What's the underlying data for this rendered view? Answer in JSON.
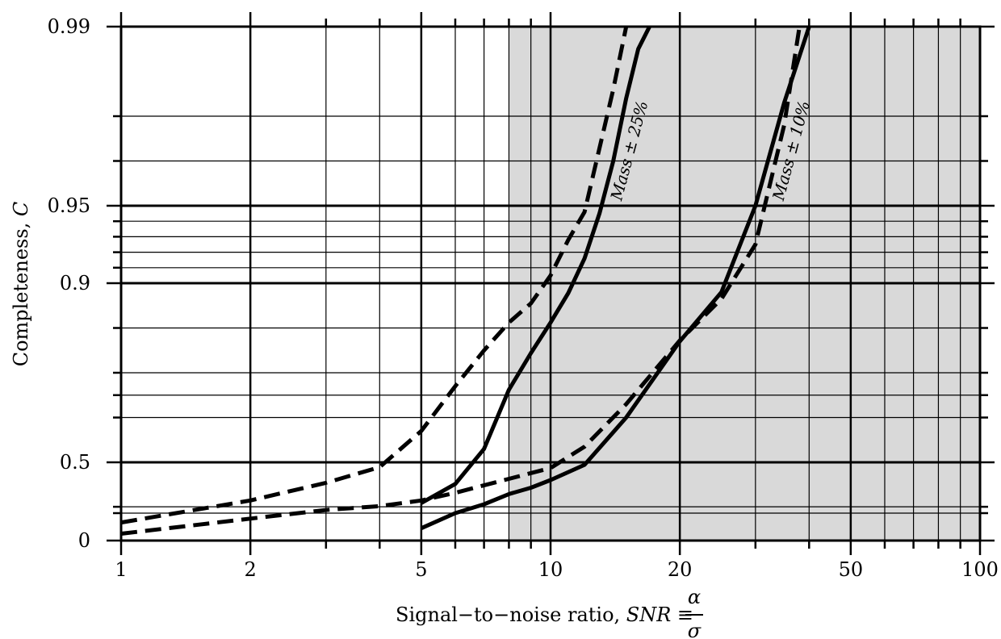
{
  "chart_data": {
    "type": "line",
    "xscale": "log",
    "yscale": "completeness (nonlinear)",
    "xlim": [
      1,
      100
    ],
    "ylim": [
      0,
      0.99
    ],
    "shaded_x_range": [
      8,
      100
    ],
    "grid": true,
    "xlabel": {
      "prefix": "Signal−to−noise ratio, ",
      "symbol": "SNR",
      "equiv": " ≡ ",
      "numerator": "α",
      "denominator": "σ"
    },
    "ylabel": {
      "prefix": "Completeness, ",
      "symbol": "C"
    },
    "x_ticks": [
      {
        "value": 1,
        "label": "1"
      },
      {
        "value": 2,
        "label": "2"
      },
      {
        "value": 5,
        "label": "5"
      },
      {
        "value": 10,
        "label": "10"
      },
      {
        "value": 20,
        "label": "20"
      },
      {
        "value": 50,
        "label": "50"
      },
      {
        "value": 100,
        "label": "100"
      }
    ],
    "y_ticks": [
      {
        "value": 0,
        "label": "0"
      },
      {
        "value": 0.5,
        "label": "0.5"
      },
      {
        "value": 0.9,
        "label": "0.9"
      },
      {
        "value": 0.95,
        "label": "0.95"
      },
      {
        "value": 0.99,
        "label": "0.99"
      }
    ],
    "annotations": [
      {
        "text": "Mass ± 25%",
        "x": 15.7,
        "y": 0.962,
        "rotation": -75
      },
      {
        "text": "Mass ± 10%",
        "x": 37.4,
        "y": 0.962,
        "rotation": -75
      }
    ],
    "series": [
      {
        "style": "dashed",
        "x": [
          1,
          2,
          3,
          4,
          5,
          6,
          7,
          8,
          9,
          10,
          11,
          12,
          14,
          15
        ],
        "y": [
          0.066,
          0.2,
          0.339,
          0.462,
          0.57,
          0.67,
          0.75,
          0.812,
          0.855,
          0.905,
          0.928,
          0.946,
          0.976,
          0.99
        ]
      },
      {
        "style": "solid",
        "x": [
          5,
          6,
          7,
          8,
          9,
          10,
          11,
          12,
          13,
          14,
          15,
          16,
          17
        ],
        "y": [
          0.18,
          0.33,
          0.53,
          0.662,
          0.744,
          0.812,
          0.878,
          0.916,
          0.945,
          0.96,
          0.974,
          0.985,
          0.99
        ]
      },
      {
        "style": "dashed",
        "x": [
          1,
          2,
          3,
          4,
          5,
          6,
          8,
          10,
          12,
          15,
          20,
          25,
          30,
          35,
          38
        ],
        "y": [
          0.025,
          0.08,
          0.125,
          0.155,
          0.2,
          0.26,
          0.37,
          0.455,
          0.535,
          0.63,
          0.772,
          0.865,
          0.925,
          0.968,
          0.99
        ]
      },
      {
        "style": "solid",
        "x": [
          5,
          6,
          7,
          8,
          9,
          10,
          12,
          15,
          20,
          25,
          30,
          35,
          40
        ],
        "y": [
          0.045,
          0.1,
          0.17,
          0.25,
          0.3,
          0.36,
          0.48,
          0.6,
          0.77,
          0.88,
          0.95,
          0.973,
          0.99
        ]
      }
    ]
  }
}
